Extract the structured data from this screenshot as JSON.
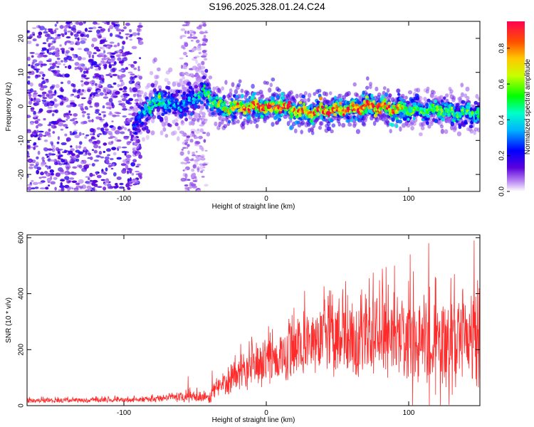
{
  "title": "S196.2025.328.01.24.C24",
  "chart_data": [
    {
      "type": "heatmap",
      "title": "S196.2025.328.01.24.C24",
      "xlabel": "Height of straight line (km)",
      "ylabel": "Frequency (Hz)",
      "xlim": [
        -168,
        150
      ],
      "ylim": [
        -25,
        25
      ],
      "xticks": [
        -100,
        0,
        100
      ],
      "yticks": [
        -20,
        -10,
        0,
        10,
        20
      ],
      "colorbar": {
        "label": "Normalized spectral amplitude",
        "range": [
          0.0,
          0.95
        ],
        "ticks": [
          0.0,
          0.2,
          0.4,
          0.6,
          0.8
        ],
        "tick_labels": [
          "0.0",
          "0.2",
          "0.4",
          "0.6",
          "0.8"
        ],
        "colormap": "rainbow"
      },
      "noise_regions": [
        {
          "x_range": [
            -168,
            -88
          ],
          "amplitude": 0.15
        },
        {
          "x_range": [
            -60,
            -42
          ],
          "amplitude": 0.08
        }
      ],
      "signal_ridge": {
        "x": [
          -93,
          -85,
          -75,
          -65,
          -55,
          -45,
          -40,
          -30,
          -20,
          -10,
          0,
          10,
          20,
          30,
          40,
          50,
          60,
          70,
          80,
          90,
          100,
          110,
          120,
          130,
          140,
          150
        ],
        "frequency": [
          -6,
          -1,
          2,
          0,
          1,
          4,
          3,
          -1,
          0,
          0,
          0,
          0,
          -1,
          -2,
          -1,
          -1,
          -1,
          0,
          0,
          -1,
          -1,
          -1,
          -1,
          -2,
          -2,
          -2
        ],
        "amplitude": [
          0.2,
          0.35,
          0.45,
          0.3,
          0.3,
          0.35,
          0.5,
          0.55,
          0.75,
          0.8,
          0.8,
          0.8,
          0.75,
          0.7,
          0.8,
          0.8,
          0.75,
          0.85,
          0.8,
          0.75,
          0.55,
          0.45,
          0.5,
          0.5,
          0.45,
          0.4
        ]
      }
    },
    {
      "type": "line",
      "xlabel": "Height of straight line (km)",
      "ylabel": "SNR (10 * v/v)",
      "xlim": [
        -168,
        150
      ],
      "ylim": [
        0,
        610
      ],
      "xticks": [
        -100,
        0,
        100
      ],
      "yticks": [
        0,
        200,
        400,
        600
      ],
      "series": [
        {
          "name": "SNR",
          "color": "#ff2a2a",
          "envelope_x": [
            -168,
            -100,
            -70,
            -50,
            -40,
            -35,
            -25,
            -15,
            -5,
            5,
            15,
            25,
            40,
            50,
            65,
            75,
            85,
            95,
            105,
            115,
            125,
            135,
            145,
            150
          ],
          "envelope_mid": [
            18,
            20,
            25,
            35,
            25,
            60,
            90,
            125,
            145,
            160,
            185,
            210,
            230,
            235,
            235,
            240,
            245,
            240,
            235,
            230,
            230,
            235,
            220,
            220
          ],
          "envelope_amp": [
            10,
            10,
            15,
            25,
            20,
            40,
            60,
            75,
            85,
            95,
            110,
            120,
            135,
            145,
            155,
            165,
            170,
            175,
            175,
            185,
            180,
            185,
            185,
            190
          ],
          "peaks": [
            [
              -55,
              105
            ],
            [
              -38,
              125
            ],
            [
              -18,
              220
            ],
            [
              -7,
              225
            ],
            [
              16,
              310
            ],
            [
              27,
              410
            ],
            [
              40,
              325
            ],
            [
              57,
              395
            ],
            [
              75,
              475
            ],
            [
              90,
              500
            ],
            [
              101,
              540
            ],
            [
              114,
              580
            ],
            [
              132,
              470
            ],
            [
              146,
              590
            ]
          ]
        }
      ]
    }
  ]
}
